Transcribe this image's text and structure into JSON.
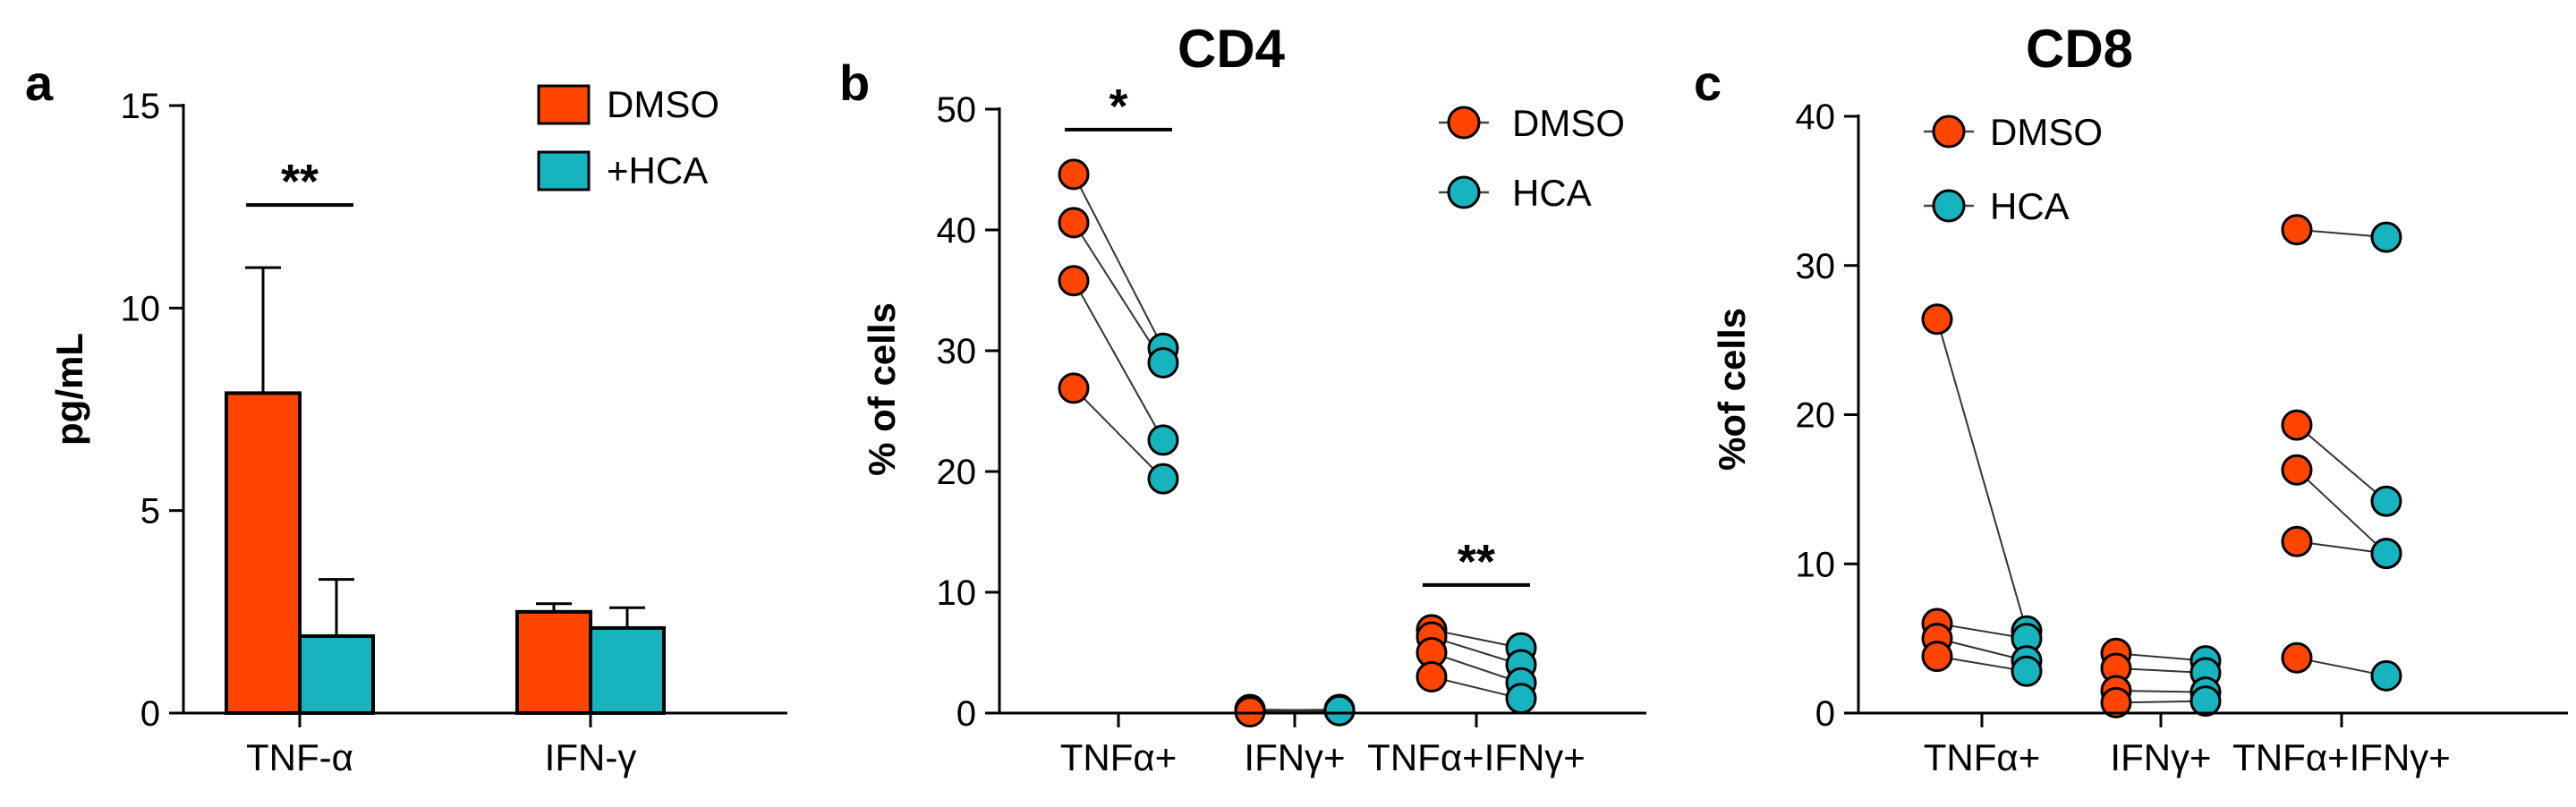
{
  "figure": {
    "panels": [
      "a",
      "b",
      "c"
    ],
    "titles": [
      "",
      "CD4",
      "CD8"
    ]
  },
  "chart_data": [
    {
      "panel": "a",
      "type": "bar",
      "title": "",
      "ylabel": "pg/mL",
      "xlabel": "",
      "ylim": [
        0,
        15
      ],
      "yticks": [
        "0",
        "5",
        "10",
        "15"
      ],
      "categories": [
        "TNF-α",
        "IFN-γ"
      ],
      "series": [
        {
          "name": "DMSO",
          "color": "#FF4500",
          "values": [
            7.9,
            2.5
          ],
          "errors": [
            3.1,
            0.2
          ]
        },
        {
          "name": "+HCA",
          "color": "#17B3BE",
          "values": [
            1.9,
            2.1
          ],
          "errors": [
            1.4,
            0.5
          ]
        }
      ],
      "significance": [
        {
          "category": "TNF-α",
          "label": "**"
        }
      ],
      "legend": "top-right"
    },
    {
      "panel": "b",
      "type": "scatter",
      "title": "CD4",
      "ylabel": "% of cells",
      "xlabel": "",
      "ylim": [
        0,
        50
      ],
      "yticks": [
        "0",
        "10",
        "20",
        "30",
        "40",
        "50"
      ],
      "categories": [
        "TNFα+",
        "IFNγ+",
        "TNFα+IFNγ+"
      ],
      "series": [
        {
          "name": "DMSO",
          "color": "#FF4500"
        },
        {
          "name": "HCA",
          "color": "#17B3BE"
        }
      ],
      "pairs": [
        [
          [
            44.6,
            30.2
          ],
          [
            40.6,
            29.0
          ],
          [
            35.8,
            22.6
          ],
          [
            26.9,
            19.4
          ]
        ],
        [
          [
            0.3,
            0.2
          ],
          [
            0.2,
            0.3
          ],
          [
            0.1,
            0.2
          ]
        ],
        [
          [
            6.9,
            5.4
          ],
          [
            6.3,
            4.0
          ],
          [
            5.0,
            2.5
          ],
          [
            3.0,
            1.2
          ]
        ]
      ],
      "significance": [
        {
          "category": "TNFα+",
          "label": "*"
        },
        {
          "category": "TNFα+IFNγ+",
          "label": "**"
        }
      ],
      "legend": "top-right"
    },
    {
      "panel": "c",
      "type": "scatter",
      "title": "CD8",
      "ylabel": "%of cells",
      "xlabel": "",
      "ylim": [
        0,
        40
      ],
      "yticks": [
        "0",
        "10",
        "20",
        "30",
        "40"
      ],
      "categories": [
        "TNFα+",
        "IFNγ+",
        "TNFα+IFNγ+"
      ],
      "series": [
        {
          "name": "DMSO",
          "color": "#FF4500"
        },
        {
          "name": "HCA",
          "color": "#17B3BE"
        }
      ],
      "pairs": [
        [
          [
            26.4,
            5.5
          ],
          [
            6.0,
            5.0
          ],
          [
            5.0,
            3.5
          ],
          [
            3.8,
            2.8
          ]
        ],
        [
          [
            4.0,
            3.5
          ],
          [
            3.0,
            2.7
          ],
          [
            1.5,
            1.4
          ],
          [
            0.7,
            0.8
          ]
        ],
        [
          [
            32.4,
            31.9
          ],
          [
            19.3,
            14.2
          ],
          [
            16.3,
            10.7
          ],
          [
            11.5,
            10.7
          ],
          [
            3.7,
            2.5
          ]
        ]
      ],
      "significance": [],
      "legend": "top-left"
    }
  ]
}
